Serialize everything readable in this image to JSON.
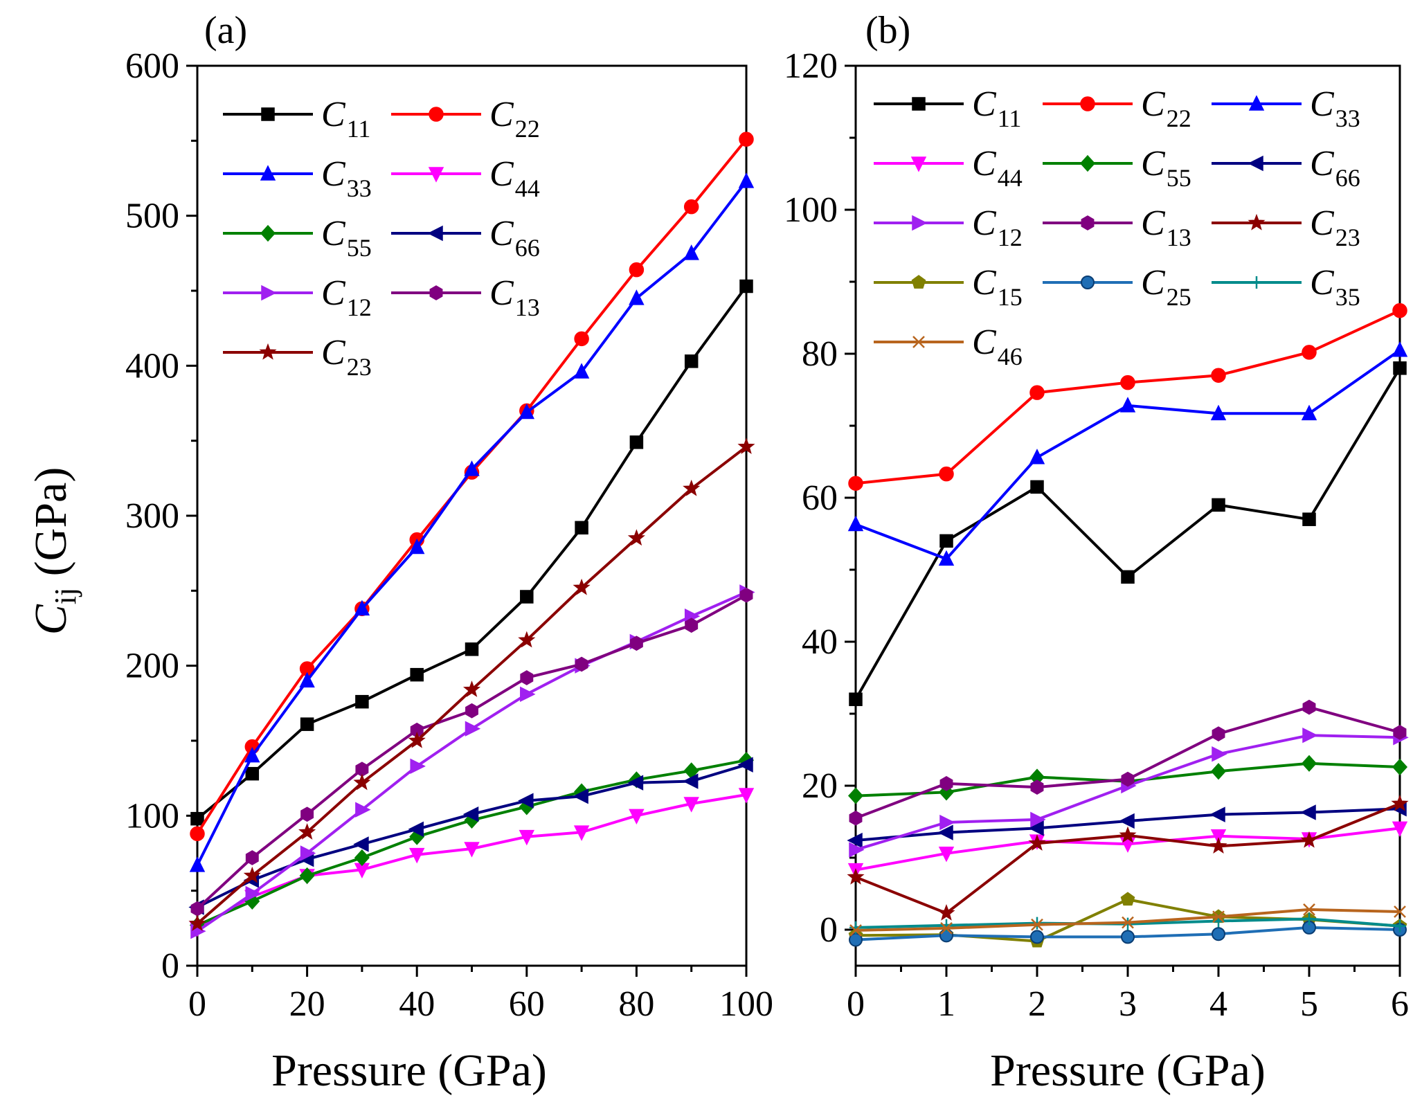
{
  "chart_data": [
    {
      "type": "line",
      "panel_label": "(a)",
      "xlabel": "Pressure (GPa)",
      "ylabel_main": "C",
      "ylabel_sub": "ij",
      "ylabel_unit": " (GPa)",
      "xlim": [
        0,
        100
      ],
      "ylim": [
        0,
        600
      ],
      "xticks": [
        "0",
        "20",
        "40",
        "60",
        "80",
        "100"
      ],
      "yticks": [
        "0",
        "100",
        "200",
        "300",
        "400",
        "500",
        "600"
      ],
      "legend_position": "top-left",
      "x": [
        0,
        10,
        20,
        30,
        40,
        50,
        60,
        70,
        80,
        90,
        100
      ],
      "series": [
        {
          "name": "C",
          "sub": "11",
          "color": "#000000",
          "marker": "square",
          "values": [
            98,
            128,
            161,
            176,
            194,
            211,
            246,
            292,
            349,
            403,
            453
          ]
        },
        {
          "name": "C",
          "sub": "22",
          "color": "#ff0000",
          "marker": "circle",
          "values": [
            88,
            146,
            198,
            238,
            284,
            329,
            370,
            418,
            464,
            506,
            551
          ]
        },
        {
          "name": "C",
          "sub": "33",
          "color": "#0000ff",
          "marker": "triangle-up",
          "values": [
            67,
            140,
            190,
            238,
            279,
            331,
            369,
            396,
            445,
            475,
            523
          ]
        },
        {
          "name": "C",
          "sub": "44",
          "color": "#ff00ff",
          "marker": "triangle-down",
          "values": [
            25,
            46,
            60,
            64,
            74,
            78,
            86,
            89,
            100,
            108,
            114
          ]
        },
        {
          "name": "C",
          "sub": "55",
          "color": "#008000",
          "marker": "diamond",
          "values": [
            27,
            43,
            60,
            72,
            86,
            97,
            106,
            116,
            124,
            130,
            137
          ]
        },
        {
          "name": "C",
          "sub": "66",
          "color": "#000080",
          "marker": "triangle-left",
          "values": [
            39,
            57,
            71,
            81,
            91,
            101,
            110,
            113,
            122,
            123,
            134
          ]
        },
        {
          "name": "C",
          "sub": "12",
          "color": "#a020f0",
          "marker": "triangle-right",
          "values": [
            23,
            48,
            75,
            104,
            133,
            158,
            181,
            200,
            216,
            233,
            249
          ]
        },
        {
          "name": "C",
          "sub": "13",
          "color": "#800080",
          "marker": "hexagon",
          "values": [
            38,
            72,
            101,
            131,
            157,
            170,
            192,
            201,
            215,
            227,
            247
          ]
        },
        {
          "name": "C",
          "sub": "23",
          "color": "#8b0000",
          "marker": "star",
          "values": [
            28,
            60,
            89,
            122,
            150,
            184,
            217,
            252,
            285,
            318,
            346
          ]
        }
      ]
    },
    {
      "type": "line",
      "panel_label": "(b)",
      "xlabel": "Pressure (GPa)",
      "xlim": [
        0,
        6
      ],
      "ylim": [
        -5,
        120
      ],
      "xticks": [
        "0",
        "1",
        "2",
        "3",
        "4",
        "5",
        "6"
      ],
      "yticks": [
        "0",
        "20",
        "40",
        "60",
        "80",
        "100",
        "120"
      ],
      "legend_position": "top",
      "x": [
        0,
        1,
        2,
        3,
        4,
        5,
        6
      ],
      "series": [
        {
          "name": "C",
          "sub": "11",
          "color": "#000000",
          "marker": "square",
          "values": [
            32,
            54,
            61.5,
            49,
            59,
            57,
            78
          ]
        },
        {
          "name": "C",
          "sub": "22",
          "color": "#ff0000",
          "marker": "circle",
          "values": [
            62,
            63.3,
            74.6,
            76,
            77,
            80.2,
            86
          ]
        },
        {
          "name": "C",
          "sub": "33",
          "color": "#0000ff",
          "marker": "triangle-up",
          "values": [
            56.3,
            51.5,
            65.6,
            72.8,
            71.7,
            71.7,
            80.5
          ]
        },
        {
          "name": "C",
          "sub": "44",
          "color": "#ff00ff",
          "marker": "triangle-down",
          "values": [
            8.3,
            10.6,
            12.3,
            11.9,
            13,
            12.6,
            14.1
          ]
        },
        {
          "name": "C",
          "sub": "55",
          "color": "#008000",
          "marker": "diamond",
          "values": [
            18.6,
            19.1,
            21.2,
            20.6,
            22,
            23.1,
            22.6
          ]
        },
        {
          "name": "C",
          "sub": "66",
          "color": "#000080",
          "marker": "triangle-left",
          "values": [
            12.4,
            13.5,
            14.1,
            15.1,
            16,
            16.3,
            16.8
          ]
        },
        {
          "name": "C",
          "sub": "12",
          "color": "#a020f0",
          "marker": "triangle-right",
          "values": [
            11.1,
            14.9,
            15.3,
            20,
            24.4,
            27,
            26.7
          ]
        },
        {
          "name": "C",
          "sub": "13",
          "color": "#800080",
          "marker": "hexagon",
          "values": [
            15.5,
            20.3,
            19.8,
            20.9,
            27.2,
            30.9,
            27.4
          ]
        },
        {
          "name": "C",
          "sub": "23",
          "color": "#8b0000",
          "marker": "star",
          "values": [
            7.3,
            2.3,
            12,
            13.1,
            11.6,
            12.4,
            17.5
          ]
        },
        {
          "name": "C",
          "sub": "15",
          "color": "#808000",
          "marker": "pentagon",
          "values": [
            -0.8,
            -0.7,
            -1.6,
            4.2,
            1.8,
            1.4,
            0.5
          ]
        },
        {
          "name": "C",
          "sub": "25",
          "color": "#1f6eb5",
          "marker": "ball",
          "values": [
            -1.4,
            -0.8,
            -1,
            -1,
            -0.6,
            0.3,
            0
          ]
        },
        {
          "name": "C",
          "sub": "35",
          "color": "#008b8b",
          "marker": "plus",
          "values": [
            0.3,
            0.6,
            0.9,
            0.8,
            1.2,
            1.5,
            0.5
          ]
        },
        {
          "name": "C",
          "sub": "46",
          "color": "#b8651e",
          "marker": "x",
          "values": [
            -0.1,
            0.2,
            0.7,
            1,
            1.8,
            2.8,
            2.5
          ]
        }
      ]
    }
  ]
}
